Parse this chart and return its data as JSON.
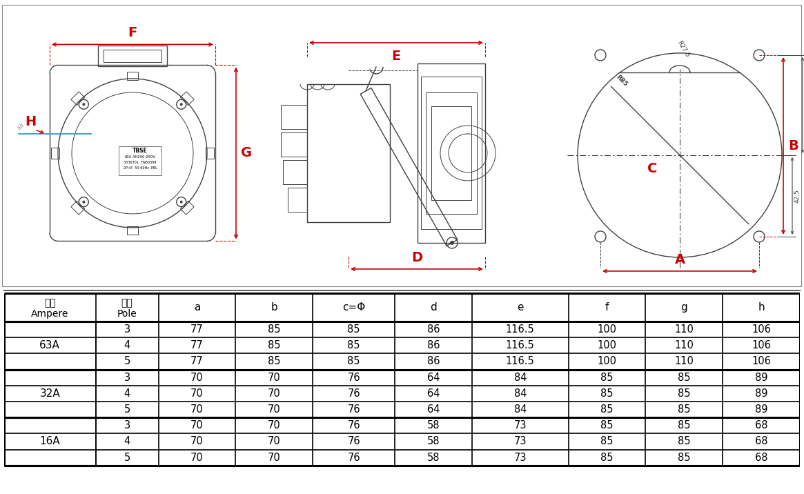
{
  "drawing_labels": {
    "F": "F",
    "G": "G",
    "H": "H",
    "D": "D",
    "E": "E",
    "A": "A",
    "B": "B",
    "C": "C"
  },
  "rear_annotations": {
    "r_circle": "R85",
    "dim_42_5_left": "42.5",
    "dim_42_5_right": "42.5",
    "dim_r27_5": "R27.5"
  },
  "table_headers_row1": [
    "安培",
    "极数",
    "a",
    "b",
    "c=Φ",
    "d",
    "e",
    "f",
    "g",
    "h"
  ],
  "table_headers_row2": [
    "Ampere",
    "Pole",
    "",
    "",
    "",
    "",
    "",
    "",
    "",
    ""
  ],
  "table_data": [
    [
      "63A",
      "3",
      "77",
      "85",
      "85",
      "86",
      "116.5",
      "100",
      "110",
      "106"
    ],
    [
      "63A",
      "4",
      "77",
      "85",
      "85",
      "86",
      "116.5",
      "100",
      "110",
      "106"
    ],
    [
      "63A",
      "5",
      "77",
      "85",
      "85",
      "86",
      "116.5",
      "100",
      "110",
      "106"
    ],
    [
      "32A",
      "3",
      "70",
      "70",
      "76",
      "64",
      "84",
      "85",
      "85",
      "89"
    ],
    [
      "32A",
      "4",
      "70",
      "70",
      "76",
      "64",
      "84",
      "85",
      "85",
      "89"
    ],
    [
      "32A",
      "5",
      "70",
      "70",
      "76",
      "64",
      "84",
      "85",
      "85",
      "89"
    ],
    [
      "16A",
      "3",
      "70",
      "70",
      "76",
      "58",
      "73",
      "85",
      "85",
      "68"
    ],
    [
      "16A",
      "4",
      "70",
      "70",
      "76",
      "58",
      "73",
      "85",
      "85",
      "68"
    ],
    [
      "16A",
      "5",
      "70",
      "70",
      "76",
      "58",
      "73",
      "85",
      "85",
      "68"
    ]
  ],
  "label_color": "#cc0000",
  "line_color": "#404040",
  "bg_color": "#ffffff"
}
